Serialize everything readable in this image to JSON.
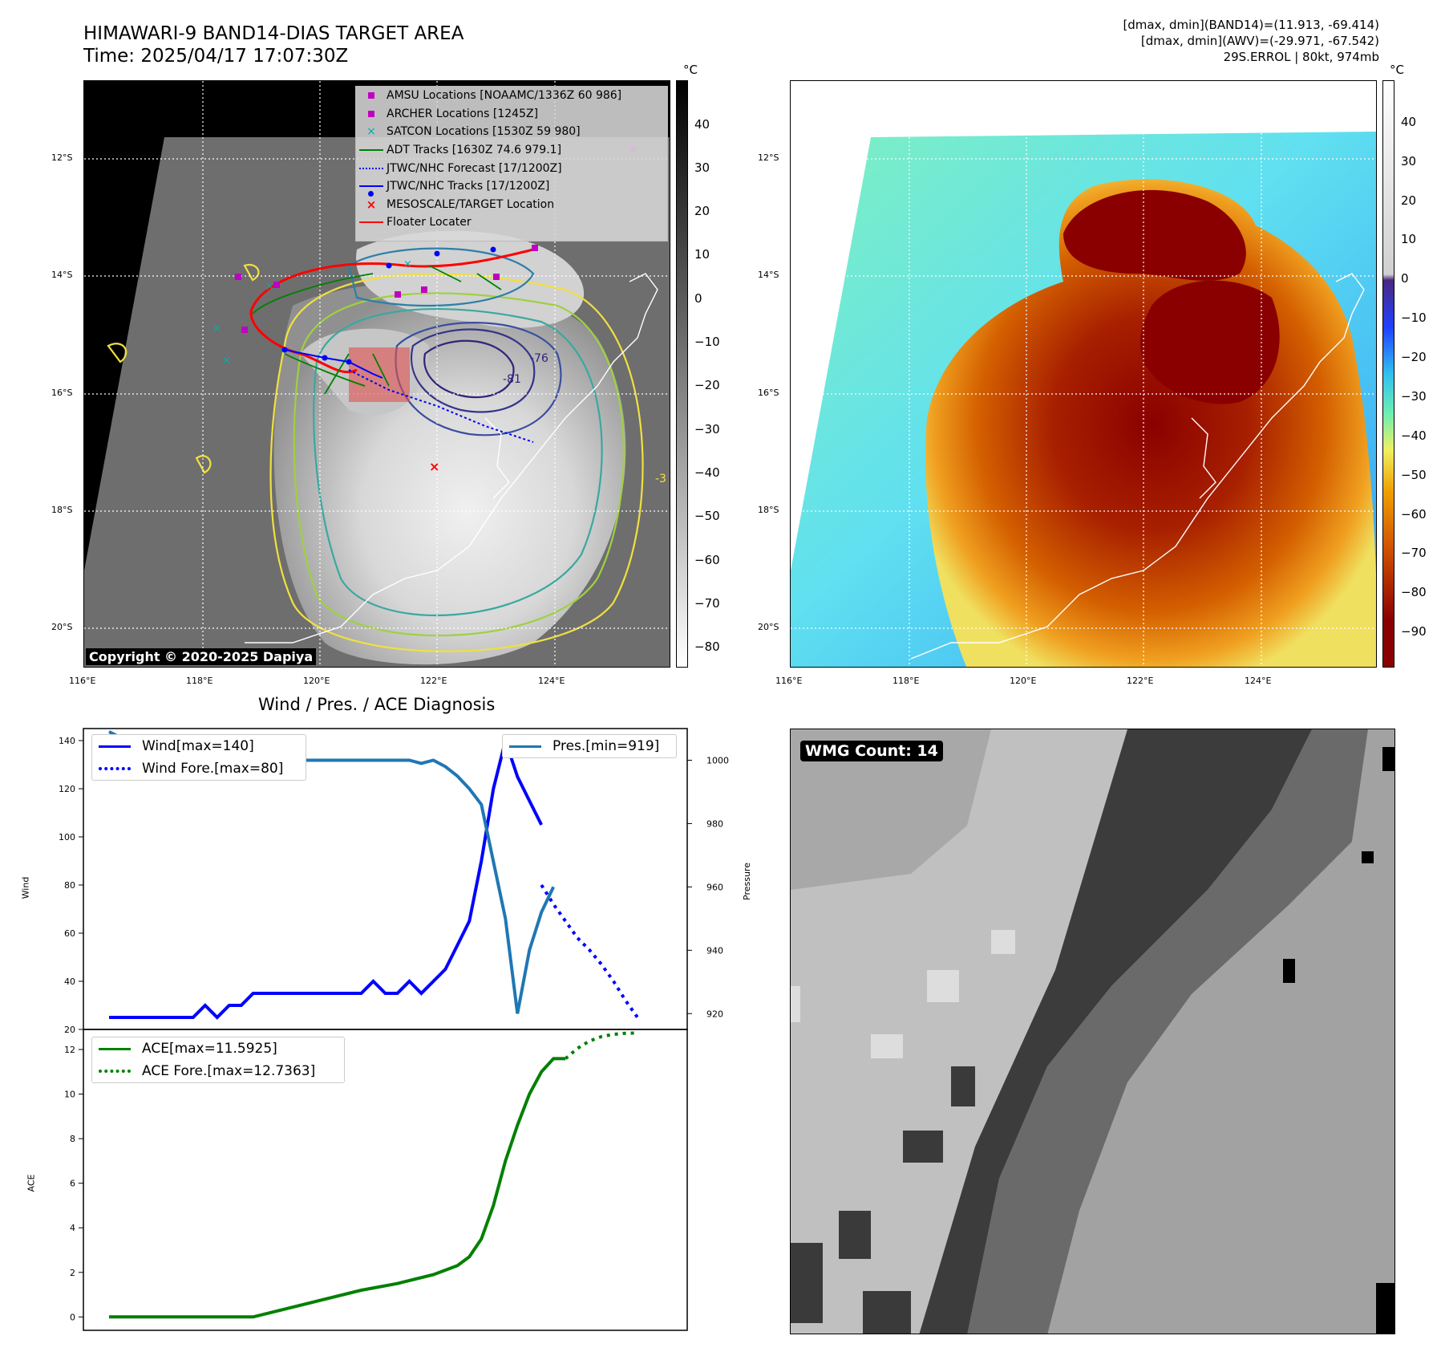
{
  "header": {
    "title_line1": "HIMAWARI-9 BAND14-DIAS TARGET AREA",
    "title_line2": "Time: 2025/04/17 17:07:30Z",
    "info_line1": "[dmax, dmin](BAND14)=(11.913, -69.414)",
    "info_line2": "[dmax, dmin](AWV)=(-29.971, -67.542)",
    "info_line3": "29S.ERROL | 80kt, 974mb"
  },
  "maps": {
    "lat_labels": [
      "12°S",
      "14°S",
      "16°S",
      "18°S",
      "20°S"
    ],
    "lon_labels": [
      "116°E",
      "118°E",
      "120°E",
      "122°E",
      "124°E"
    ],
    "unit": "°C",
    "left_colorbar_ticks": [
      "40",
      "30",
      "20",
      "10",
      "0",
      "−10",
      "−20",
      "−30",
      "−40",
      "−50",
      "−60",
      "−70",
      "−80"
    ],
    "right_colorbar_ticks": [
      "40",
      "30",
      "20",
      "10",
      "0",
      "−10",
      "−20",
      "−30",
      "−40",
      "−50",
      "−60",
      "−70",
      "−80",
      "−90"
    ],
    "copyright": "Copyright © 2020-2025 Dapiya",
    "contour_labels": [
      "-76",
      "-81",
      "-3"
    ],
    "legend": [
      {
        "label": "AMSU Locations [NOAAMC/1336Z 60 986]",
        "symbol": "square",
        "color": "#c000c0"
      },
      {
        "label": "ARCHER Locations [1245Z]",
        "symbol": "square",
        "color": "#c000c0"
      },
      {
        "label": "SATCON Locations [1530Z 59 980]",
        "symbol": "x",
        "color": "#00b0a8"
      },
      {
        "label": "ADT Tracks [1630Z 74.6 979.1]",
        "symbol": "line",
        "color": "#008000"
      },
      {
        "label": "JTWC/NHC Forecast [17/1200Z]",
        "symbol": "dotted",
        "color": "#0000ff"
      },
      {
        "label": "JTWC/NHC Tracks [17/1200Z]",
        "symbol": "line-dot",
        "color": "#0000ff"
      },
      {
        "label": "MESOSCALE/TARGET Location",
        "symbol": "x",
        "color": "#ff0000"
      },
      {
        "label": "Floater Locater",
        "symbol": "line",
        "color": "#ff0000"
      }
    ],
    "wmg_count": "WMG Count: 14"
  },
  "diagnosis": {
    "title": "Wind / Pres. / ACE Diagnosis"
  },
  "chart_data": [
    {
      "type": "line",
      "title": "Wind / Pres. / ACE Diagnosis",
      "ylabel": "Wind",
      "y2label": "Pressure",
      "ylim": [
        20,
        145
      ],
      "y2lim": [
        915,
        1010
      ],
      "yticks": [
        20,
        40,
        60,
        80,
        100,
        120,
        140
      ],
      "y2ticks": [
        920,
        940,
        960,
        980,
        1000
      ],
      "series": [
        {
          "name": "Wind[max=140]",
          "color": "#0000ff",
          "style": "solid",
          "x": [
            0,
            1,
            2,
            3,
            4,
            5,
            6,
            7,
            8,
            9,
            10,
            11,
            12,
            13,
            14,
            15,
            16,
            17,
            18,
            19,
            20,
            21,
            22,
            23,
            24,
            25,
            26,
            27,
            28,
            29,
            30,
            31,
            32,
            33,
            34,
            35,
            36
          ],
          "values": [
            25,
            25,
            25,
            25,
            25,
            25,
            25,
            25,
            30,
            25,
            30,
            30,
            35,
            35,
            35,
            35,
            35,
            35,
            35,
            35,
            35,
            35,
            40,
            35,
            35,
            40,
            35,
            40,
            45,
            55,
            65,
            90,
            120,
            140,
            125,
            115,
            105
          ]
        },
        {
          "name": "Wind Fore.[max=80]",
          "color": "#0000ff",
          "style": "dotted",
          "x": [
            36,
            37,
            38,
            39,
            40,
            41,
            42,
            43,
            44
          ],
          "values": [
            80,
            72,
            65,
            58,
            53,
            47,
            40,
            32,
            25
          ]
        },
        {
          "name": "Pres.[min=919]",
          "color": "#1f77b4",
          "style": "solid",
          "axis": "right",
          "x": [
            0,
            1,
            2,
            3,
            4,
            5,
            6,
            7,
            8,
            9,
            10,
            11,
            12,
            13,
            14,
            15,
            16,
            17,
            18,
            19,
            20,
            21,
            22,
            23,
            24,
            25,
            26,
            27,
            28,
            29,
            30,
            31,
            32,
            33,
            34,
            35,
            36,
            37
          ],
          "values": [
            1009,
            1007,
            1007,
            1006,
            1004,
            1003,
            1001,
            1000,
            1000,
            1000,
            1000,
            1000,
            1000,
            1000,
            1000,
            1000,
            1000,
            1000,
            1000,
            1000,
            1000,
            1000,
            1000,
            1000,
            1000,
            1000,
            999,
            1000,
            998,
            995,
            991,
            986,
            968,
            950,
            920,
            940,
            952,
            960
          ]
        }
      ]
    },
    {
      "type": "line",
      "ylabel": "ACE",
      "ylim": [
        -0.6,
        12.9
      ],
      "yticks": [
        0,
        2,
        4,
        6,
        8,
        10,
        12
      ],
      "series": [
        {
          "name": "ACE[max=11.5925]",
          "color": "#008000",
          "style": "solid",
          "x": [
            0,
            3,
            6,
            9,
            12,
            15,
            18,
            21,
            24,
            27,
            29,
            30,
            31,
            32,
            33,
            34,
            35,
            36,
            37,
            38
          ],
          "values": [
            0,
            0,
            0,
            0,
            0,
            0.4,
            0.8,
            1.2,
            1.5,
            1.9,
            2.3,
            2.7,
            3.5,
            5.0,
            7.0,
            8.6,
            10.0,
            11.0,
            11.59,
            11.59
          ]
        },
        {
          "name": "ACE Fore.[max=12.7363]",
          "color": "#008000",
          "style": "dotted",
          "x": [
            38,
            39,
            40,
            41,
            42,
            43,
            44
          ],
          "values": [
            11.59,
            12.05,
            12.38,
            12.58,
            12.68,
            12.73,
            12.74
          ]
        }
      ]
    }
  ]
}
